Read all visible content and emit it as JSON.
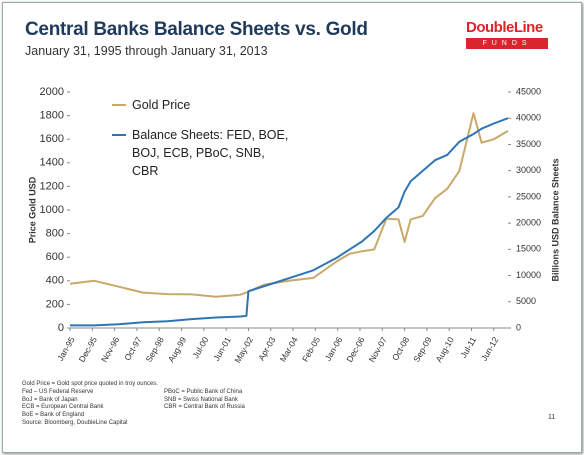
{
  "chart_data": {
    "type": "line",
    "title": "Central Banks Balance Sheets vs. Gold",
    "subtitle": "January 31, 1995 through January 31, 2013",
    "logo": {
      "name": "DoubleLine",
      "sub": "FUNDS"
    },
    "ylabel": "Price Gold USD",
    "y2label": "Billions USD Balance Sheets",
    "x": [
      "1995-01",
      "1996-01",
      "1997-01",
      "1998-01",
      "1999-01",
      "2000-01",
      "2001-01",
      "2002-01",
      "2002-04",
      "2002-05",
      "2003-01",
      "2004-01",
      "2005-01",
      "2006-01",
      "2006-07",
      "2007-01",
      "2007-07",
      "2008-01",
      "2008-07",
      "2008-10",
      "2009-01",
      "2009-07",
      "2010-01",
      "2010-07",
      "2011-01",
      "2011-08",
      "2011-12",
      "2012-06",
      "2013-01"
    ],
    "xlim": [
      "1995-01",
      "2013-01"
    ],
    "xticks": [
      {
        "value": "1995-01",
        "label": "Jan-95"
      },
      {
        "value": "1995-12",
        "label": "Dec-95"
      },
      {
        "value": "1996-11",
        "label": "Nov-96"
      },
      {
        "value": "1997-10",
        "label": "Oct-97"
      },
      {
        "value": "1998-09",
        "label": "Sep-98"
      },
      {
        "value": "1999-08",
        "label": "Aug-99"
      },
      {
        "value": "2000-07",
        "label": "Jul-00"
      },
      {
        "value": "2001-06",
        "label": "Jun-01"
      },
      {
        "value": "2002-05",
        "label": "May-02"
      },
      {
        "value": "2003-04",
        "label": "Apr-03"
      },
      {
        "value": "2004-03",
        "label": "Mar-04"
      },
      {
        "value": "2005-02",
        "label": "Feb-05"
      },
      {
        "value": "2006-01",
        "label": "Jan-06"
      },
      {
        "value": "2006-12",
        "label": "Dec-06"
      },
      {
        "value": "2007-11",
        "label": "Nov-07"
      },
      {
        "value": "2008-10",
        "label": "Oct-08"
      },
      {
        "value": "2009-09",
        "label": "Sep-09"
      },
      {
        "value": "2010-08",
        "label": "Aug-10"
      },
      {
        "value": "2011-07",
        "label": "Jul-11"
      },
      {
        "value": "2012-06",
        "label": "Jun-12"
      }
    ],
    "ylim": [
      0,
      2000
    ],
    "yticks": [
      0,
      200,
      400,
      600,
      800,
      1000,
      1200,
      1400,
      1600,
      1800,
      2000
    ],
    "y2lim": [
      0,
      45000
    ],
    "y2ticks": [
      0,
      5000,
      10000,
      15000,
      20000,
      25000,
      30000,
      35000,
      40000,
      45000
    ],
    "series": [
      {
        "name": "Gold Price",
        "color": "#c8a96a",
        "values": [
          375,
          400,
          350,
          300,
          287,
          285,
          265,
          282,
          300,
          310,
          368,
          400,
          425,
          570,
          630,
          650,
          665,
          925,
          920,
          730,
          920,
          950,
          1100,
          1180,
          1330,
          1820,
          1570,
          1600,
          1670
        ]
      },
      {
        "name": "Balance Sheets: FED, BOE, BOJ, ECB, PBoC, SNB, CBR",
        "color": "#2e75b6",
        "axis": "y2",
        "values": [
          500,
          500,
          700,
          1100,
          1300,
          1700,
          2000,
          2200,
          2300,
          7000,
          8000,
          9500,
          11000,
          13500,
          15000,
          16500,
          18500,
          21000,
          23000,
          26000,
          28000,
          30000,
          32000,
          33000,
          35500,
          37000,
          38000,
          39000,
          40000
        ]
      }
    ],
    "notes_left": [
      "Gold Price = Gold spot price quoted in troy ounces.",
      "Fed – US Federal Reserve",
      "BoJ = Bank of Japan",
      "ECB = European Central Bank",
      "BoE = Bank of England",
      "Source: Bloomberg, DoubleLine Capital"
    ],
    "notes_right": [
      "PBoC = Public Bank of China",
      "SNB = Swiss National Bank",
      "CBR = Central Bank of Russia"
    ],
    "page_number": "11"
  }
}
